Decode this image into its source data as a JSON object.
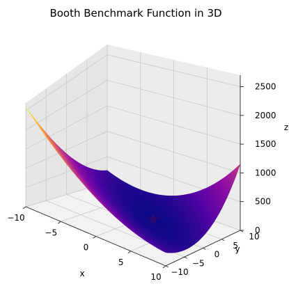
{
  "chart_data": {
    "type": "surface3d",
    "title": "Booth Benchmark Function in 3D",
    "function": "f(x, y) = (x + 2y - 7)^2 + (2x + y - 5)^2",
    "xlabel": "x",
    "ylabel": "y",
    "zlabel": "z",
    "xlim": [
      -10,
      10
    ],
    "ylim": [
      -10,
      10
    ],
    "zlim": [
      0,
      2700
    ],
    "x_ticks": [
      "-10",
      "-5",
      "0",
      "5",
      "10"
    ],
    "y_ticks": [
      "-10",
      "-5",
      "0",
      "5",
      "10"
    ],
    "z_ticks": [
      "0",
      "500",
      "1000",
      "1500",
      "2000",
      "2500"
    ],
    "colormap": "plasma",
    "grid": true,
    "minimum_marker": {
      "x": 1,
      "y": 3,
      "z": 0,
      "marker": "star",
      "color": "#2d0a6e"
    }
  }
}
